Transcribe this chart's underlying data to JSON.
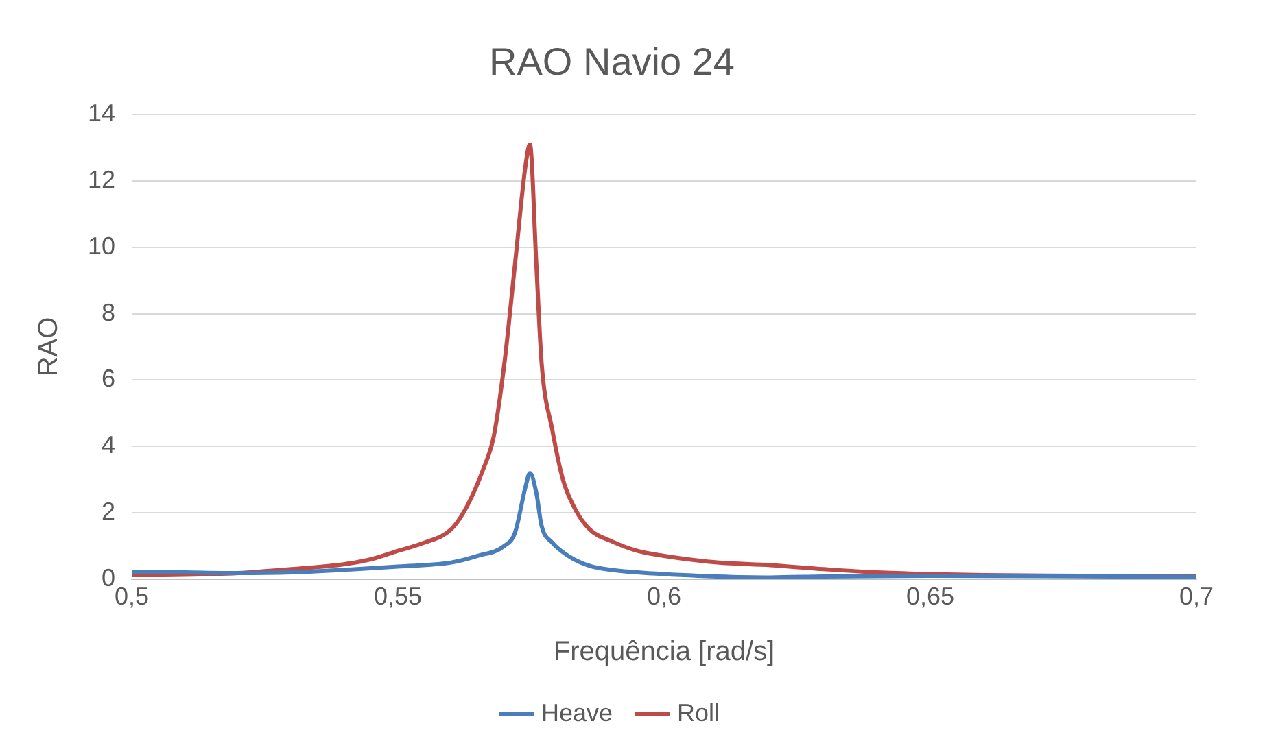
{
  "chart_data": {
    "type": "line",
    "title": "RAO Navio 24",
    "xlabel": "Frequência [rad/s]",
    "ylabel": "RAO",
    "xlim": [
      0.5,
      0.7
    ],
    "xticks": [
      {
        "value": 0.5,
        "label": "0,5"
      },
      {
        "value": 0.55,
        "label": "0,55"
      },
      {
        "value": 0.6,
        "label": "0,6"
      },
      {
        "value": 0.65,
        "label": "0,65"
      },
      {
        "value": 0.7,
        "label": "0,7"
      }
    ],
    "ylim": [
      0,
      14
    ],
    "yticks": [
      0,
      2,
      4,
      6,
      8,
      10,
      12,
      14
    ],
    "grid": "y",
    "legend": "bottom",
    "marker": "none",
    "line_style": "solid",
    "series": [
      {
        "name": "Heave",
        "color": "#4a7ebb",
        "x": [
          0.5,
          0.51,
          0.52,
          0.53,
          0.54,
          0.55,
          0.56,
          0.565,
          0.57,
          0.572,
          0.574,
          0.5748,
          0.576,
          0.577,
          0.579,
          0.582,
          0.586,
          0.59,
          0.6,
          0.61,
          0.62,
          0.63,
          0.65,
          0.7
        ],
        "values": [
          0.22,
          0.2,
          0.18,
          0.2,
          0.28,
          0.38,
          0.5,
          0.7,
          1.0,
          1.4,
          2.8,
          3.2,
          2.6,
          1.6,
          1.1,
          0.7,
          0.4,
          0.28,
          0.15,
          0.08,
          0.05,
          0.08,
          0.1,
          0.07
        ]
      },
      {
        "name": "Roll",
        "color": "#be4b48",
        "x": [
          0.5,
          0.51,
          0.52,
          0.53,
          0.54,
          0.545,
          0.55,
          0.555,
          0.56,
          0.563,
          0.566,
          0.568,
          0.57,
          0.572,
          0.574,
          0.5748,
          0.576,
          0.577,
          0.579,
          0.581,
          0.583,
          0.586,
          0.59,
          0.595,
          0.6,
          0.61,
          0.62,
          0.63,
          0.64,
          0.65,
          0.66,
          0.7
        ],
        "values": [
          0.12,
          0.13,
          0.18,
          0.3,
          0.45,
          0.6,
          0.85,
          1.1,
          1.5,
          2.2,
          3.3,
          4.3,
          6.5,
          9.5,
          12.5,
          13.1,
          9.5,
          6.5,
          4.5,
          3.0,
          2.2,
          1.5,
          1.15,
          0.85,
          0.7,
          0.5,
          0.42,
          0.3,
          0.2,
          0.15,
          0.12,
          0.08
        ]
      }
    ]
  }
}
